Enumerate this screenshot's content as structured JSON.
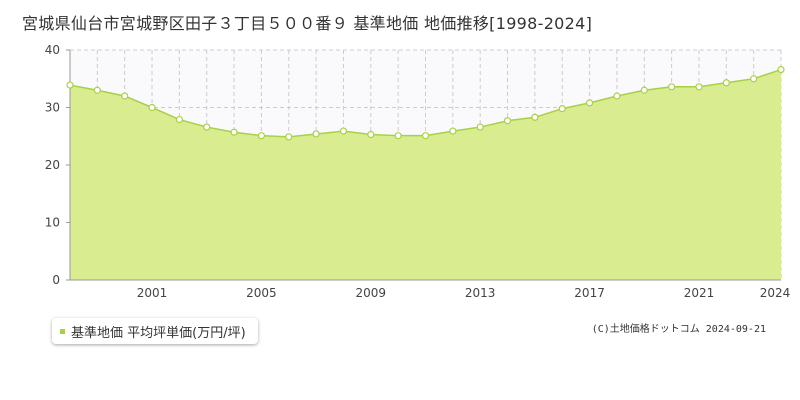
{
  "chart_data": {
    "type": "area",
    "title": "宮城県仙台市宮城野区田子３丁目５００番９ 基準地価 地価推移[1998-2024]",
    "x": [
      1998,
      1999,
      2000,
      2001,
      2002,
      2003,
      2004,
      2005,
      2006,
      2007,
      2008,
      2009,
      2010,
      2011,
      2012,
      2013,
      2014,
      2015,
      2016,
      2017,
      2018,
      2019,
      2020,
      2021,
      2022,
      2023,
      2024
    ],
    "series": [
      {
        "name": "基準地価 平均坪単価(万円/坪)",
        "values": [
          33.9,
          33.0,
          32.0,
          30.0,
          27.9,
          26.6,
          25.7,
          25.1,
          24.9,
          25.4,
          25.9,
          25.3,
          25.1,
          25.1,
          25.9,
          26.6,
          27.7,
          28.3,
          29.8,
          30.8,
          32.0,
          33.0,
          33.6,
          33.6,
          34.3,
          35.0,
          36.6
        ]
      }
    ],
    "ylim": [
      0,
      40
    ],
    "yticks": [
      0,
      10,
      20,
      30,
      40
    ],
    "xticks": [
      2001,
      2005,
      2009,
      2013,
      2017,
      2021,
      2024
    ],
    "grid": true,
    "legend_position": "bottom-left",
    "colors": {
      "area_fill": "#d9ec8f",
      "area_stroke": "#a8d048",
      "marker_fill": "#ffffff",
      "marker_stroke": "#a8d048",
      "grid": "#cccccc",
      "plot_bg": "#fafafc"
    }
  },
  "credit": "(C)土地価格ドットコム 2024-09-21"
}
